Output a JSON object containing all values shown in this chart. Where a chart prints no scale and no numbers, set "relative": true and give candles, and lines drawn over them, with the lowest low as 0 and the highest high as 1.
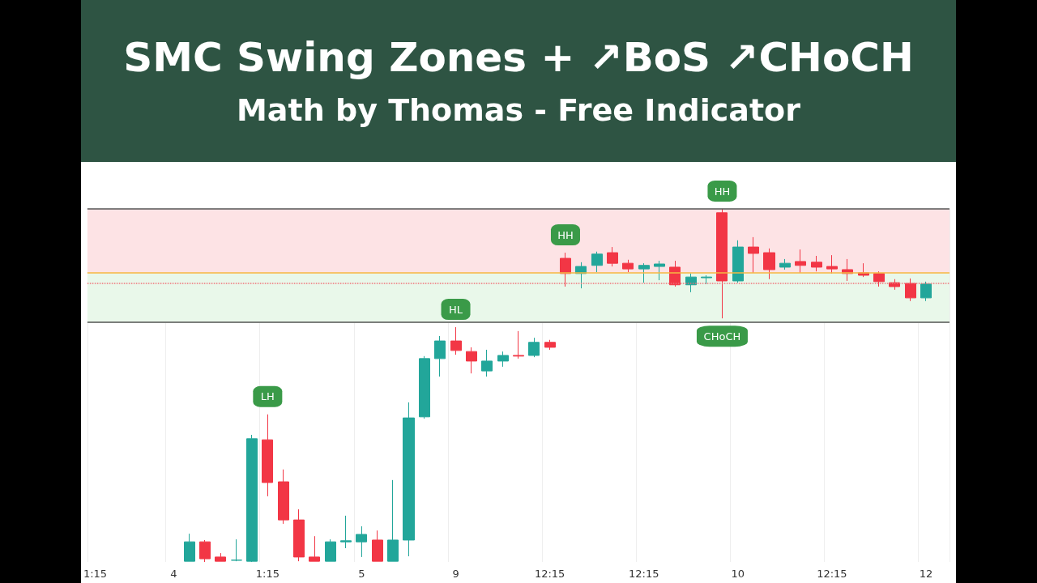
{
  "chart_data": {
    "type": "candlestick",
    "title": "SMC Swing Zones + ↗BoS ↗CHoCH",
    "subtitle": "Math by Thomas - Free Indicator",
    "relative": true,
    "grid": "x",
    "categories": [
      "1:15",
      null,
      null,
      null,
      null,
      "4",
      null,
      null,
      null,
      null,
      null,
      "1:15",
      null,
      null,
      null,
      null,
      null,
      "5",
      null,
      null,
      null,
      null,
      null,
      "9",
      null,
      null,
      null,
      null,
      null,
      "12:15",
      null,
      null,
      null,
      null,
      null,
      "12:15",
      null,
      null,
      null,
      null,
      null,
      "10",
      null,
      null,
      null,
      null,
      null,
      "12:15",
      null,
      null,
      null,
      null,
      null,
      "12",
      null
    ],
    "ohlc": [
      null,
      null,
      null,
      null,
      null,
      null,
      [
        0.002,
        0.08,
        0.002,
        0.057
      ],
      [
        0.057,
        0.062,
        0,
        0.009
      ],
      [
        0.014,
        0.025,
        0.002,
        0.002
      ],
      [
        0.005,
        0.064,
        0.002,
        0.005
      ],
      [
        0.002,
        0.36,
        0,
        0.349
      ],
      [
        0.346,
        0.418,
        0.186,
        0.225
      ],
      [
        0.227,
        0.262,
        0.108,
        0.119
      ],
      [
        0.119,
        0.149,
        0.002,
        0.014
      ],
      [
        0.014,
        0.073,
        0.002,
        0.002
      ],
      [
        0.002,
        0.064,
        0.002,
        0.057
      ],
      [
        0.057,
        0.131,
        0.039,
        0.06
      ],
      [
        0.057,
        0.101,
        0.014,
        0.078
      ],
      [
        0.062,
        0.089,
        0.002,
        0.002
      ],
      [
        0.002,
        0.232,
        0.002,
        0.062
      ],
      [
        0.062,
        0.452,
        0.016,
        0.408
      ],
      [
        0.411,
        0.583,
        0.406,
        0.576
      ],
      [
        0.576,
        0.64,
        0.525,
        0.626
      ],
      [
        0.626,
        0.665,
        0.587,
        0.599
      ],
      [
        0.596,
        0.608,
        0.534,
        0.569
      ],
      [
        0.541,
        0.601,
        0.525,
        0.569
      ],
      [
        0.569,
        0.596,
        0.553,
        0.585
      ],
      [
        0.585,
        0.654,
        0.576,
        0.583
      ],
      [
        0.585,
        0.635,
        0.58,
        0.622
      ],
      [
        0.622,
        0.629,
        0.601,
        0.608
      ],
      [
        0.86,
        0.876,
        0.78,
        0.817
      ],
      [
        0.817,
        0.849,
        0.775,
        0.837
      ],
      [
        0.84,
        0.879,
        0.821,
        0.872
      ],
      [
        0.876,
        0.892,
        0.837,
        0.846
      ],
      [
        0.846,
        0.856,
        0.821,
        0.83
      ],
      [
        0.83,
        0.846,
        0.791,
        0.84
      ],
      [
        0.837,
        0.853,
        0.798,
        0.844
      ],
      [
        0.835,
        0.853,
        0.78,
        0.785
      ],
      [
        0.785,
        0.817,
        0.764,
        0.807
      ],
      [
        0.805,
        0.812,
        0.787,
        0.807
      ],
      [
        0.989,
        1,
        0.69,
        0.796
      ],
      [
        0.796,
        0.911,
        0.791,
        0.892
      ],
      [
        0.892,
        0.92,
        0.819,
        0.874
      ],
      [
        0.876,
        0.888,
        0.801,
        0.828
      ],
      [
        0.835,
        0.858,
        0.828,
        0.846
      ],
      [
        0.851,
        0.885,
        0.819,
        0.84
      ],
      [
        0.849,
        0.867,
        0.823,
        0.835
      ],
      [
        0.837,
        0.869,
        0.817,
        0.83
      ],
      [
        0.828,
        0.858,
        0.796,
        0.817
      ],
      [
        0.819,
        0.846,
        0.807,
        0.812
      ],
      [
        0.817,
        0.823,
        0.78,
        0.794
      ],
      [
        0.791,
        0.801,
        0.771,
        0.78
      ],
      [
        0.789,
        0.803,
        0.739,
        0.748
      ],
      [
        0.748,
        0.794,
        0.739,
        0.787
      ],
      null
    ],
    "annotations": [
      {
        "text": "LH",
        "y": 0.418
      },
      {
        "text": "HL",
        "y": 0.665
      },
      {
        "text": "HH",
        "y": 0.876
      },
      {
        "text": "HH",
        "y": 1
      },
      {
        "text": "CHoCH",
        "y": 0.69
      }
    ],
    "ref_lines": [
      {
        "axis": "y",
        "value": 0.789,
        "color": "#f0717a",
        "line_style": "dotted"
      },
      {
        "axis": "y",
        "value": 0.817,
        "color": "#f5b942",
        "line_style": "solid"
      },
      {
        "axis": "y",
        "value": 1,
        "color": "#555555",
        "line_style": "solid"
      },
      {
        "axis": "y",
        "value": 0.677,
        "color": "#555555",
        "line_style": "solid"
      }
    ],
    "bands": [
      {
        "axis": "y",
        "from": 0.817,
        "to": 1,
        "color": "#fde3e5"
      },
      {
        "axis": "y",
        "from": 0.677,
        "to": 0.817,
        "color": "#e9f8ea"
      }
    ]
  }
}
